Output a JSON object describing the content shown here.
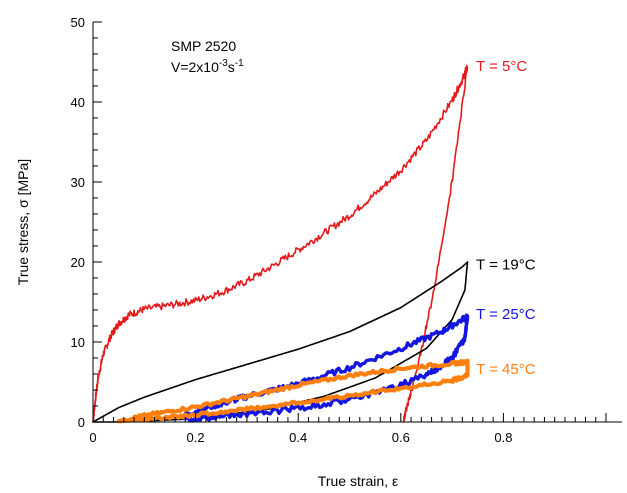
{
  "chart_data": {
    "type": "line",
    "xlabel": "True strain, ε",
    "ylabel": "True stress, σ [MPa]",
    "xlim": [
      0,
      1.0
    ],
    "ylim": [
      0,
      50
    ],
    "x_ticks": [
      {
        "value": 0,
        "label": "0"
      },
      {
        "value": 0.2,
        "label": "0.2"
      },
      {
        "value": 0.4,
        "label": "0.4"
      },
      {
        "value": 0.6,
        "label": "0.6"
      },
      {
        "value": 0.8,
        "label": "0.8"
      }
    ],
    "y_ticks": [
      {
        "value": 0,
        "label": "0"
      },
      {
        "value": 10,
        "label": "10"
      },
      {
        "value": 20,
        "label": "20"
      },
      {
        "value": 30,
        "label": "30"
      },
      {
        "value": 40,
        "label": "40"
      },
      {
        "value": 50,
        "label": "50"
      }
    ],
    "annotation": {
      "line1": "SMP 2520",
      "line2_prefix": "V=2x10",
      "line2_exp1": "-3",
      "line2_mid": "s",
      "line2_exp2": "-1"
    },
    "grid": false,
    "legend": "inline labels at curve ends",
    "series": [
      {
        "name": "T = 5°C",
        "color": "#e31a1c",
        "width": 1.6,
        "noise": 0.45,
        "label_at": [
          0.735,
          44.5
        ],
        "points": [
          [
            0,
            0
          ],
          [
            0.005,
            3
          ],
          [
            0.01,
            5.5
          ],
          [
            0.02,
            8.5
          ],
          [
            0.035,
            10.8
          ],
          [
            0.05,
            12.3
          ],
          [
            0.07,
            13.4
          ],
          [
            0.1,
            14.1
          ],
          [
            0.15,
            14.6
          ],
          [
            0.2,
            15.2
          ],
          [
            0.25,
            16.2
          ],
          [
            0.3,
            17.6
          ],
          [
            0.35,
            19.5
          ],
          [
            0.4,
            21.5
          ],
          [
            0.45,
            23.6
          ],
          [
            0.5,
            25.8
          ],
          [
            0.55,
            28.5
          ],
          [
            0.6,
            31.5
          ],
          [
            0.65,
            35.2
          ],
          [
            0.7,
            40.2
          ],
          [
            0.72,
            42.8
          ],
          [
            0.73,
            44.5
          ],
          [
            0.7,
            30
          ],
          [
            0.66,
            15
          ],
          [
            0.63,
            6
          ],
          [
            0.61,
            1.5
          ],
          [
            0.605,
            0
          ]
        ]
      },
      {
        "name": "T = 19°C",
        "color": "#000000",
        "width": 1.6,
        "noise": 0,
        "label_at": [
          0.735,
          19.7
        ],
        "points": [
          [
            0,
            0
          ],
          [
            0.05,
            1.8
          ],
          [
            0.1,
            3.1
          ],
          [
            0.2,
            5.3
          ],
          [
            0.3,
            7.2
          ],
          [
            0.4,
            9.1
          ],
          [
            0.5,
            11.3
          ],
          [
            0.6,
            14.3
          ],
          [
            0.68,
            17.6
          ],
          [
            0.72,
            19.4
          ],
          [
            0.73,
            20
          ],
          [
            0.725,
            16.5
          ],
          [
            0.7,
            12.8
          ],
          [
            0.65,
            9.2
          ],
          [
            0.55,
            5.5
          ],
          [
            0.45,
            3.2
          ],
          [
            0.35,
            1.7
          ],
          [
            0.2,
            0.4
          ],
          [
            0.05,
            0
          ],
          [
            0,
            0
          ]
        ]
      },
      {
        "name": "T = 25°C",
        "color": "#1515e0",
        "width": 3.4,
        "noise": 0.35,
        "label_at": [
          0.735,
          13.5
        ],
        "points": [
          [
            0.18,
            1
          ],
          [
            0.25,
            2.3
          ],
          [
            0.3,
            3.2
          ],
          [
            0.4,
            4.8
          ],
          [
            0.5,
            6.8
          ],
          [
            0.6,
            9.2
          ],
          [
            0.68,
            11.3
          ],
          [
            0.73,
            13.2
          ],
          [
            0.725,
            10.5
          ],
          [
            0.7,
            8
          ],
          [
            0.65,
            5.8
          ],
          [
            0.55,
            3.6
          ],
          [
            0.45,
            2.2
          ],
          [
            0.35,
            1.3
          ],
          [
            0.25,
            0.7
          ],
          [
            0.18,
            0.4
          ]
        ]
      },
      {
        "name": "T = 45°C",
        "color": "#ff7f0e",
        "width": 4.2,
        "noise": 0.2,
        "label_at": [
          0.735,
          6.6
        ],
        "points": [
          [
            0.05,
            0.1
          ],
          [
            0.1,
            0.8
          ],
          [
            0.2,
            1.9
          ],
          [
            0.3,
            3.2
          ],
          [
            0.4,
            4.6
          ],
          [
            0.5,
            5.8
          ],
          [
            0.6,
            6.7
          ],
          [
            0.7,
            7.3
          ],
          [
            0.73,
            7.5
          ],
          [
            0.73,
            5.8
          ],
          [
            0.7,
            5.2
          ],
          [
            0.6,
            4.2
          ],
          [
            0.5,
            3.3
          ],
          [
            0.4,
            2.4
          ],
          [
            0.3,
            1.6
          ],
          [
            0.2,
            0.9
          ],
          [
            0.1,
            0.3
          ],
          [
            0.05,
            0.1
          ]
        ]
      }
    ]
  }
}
